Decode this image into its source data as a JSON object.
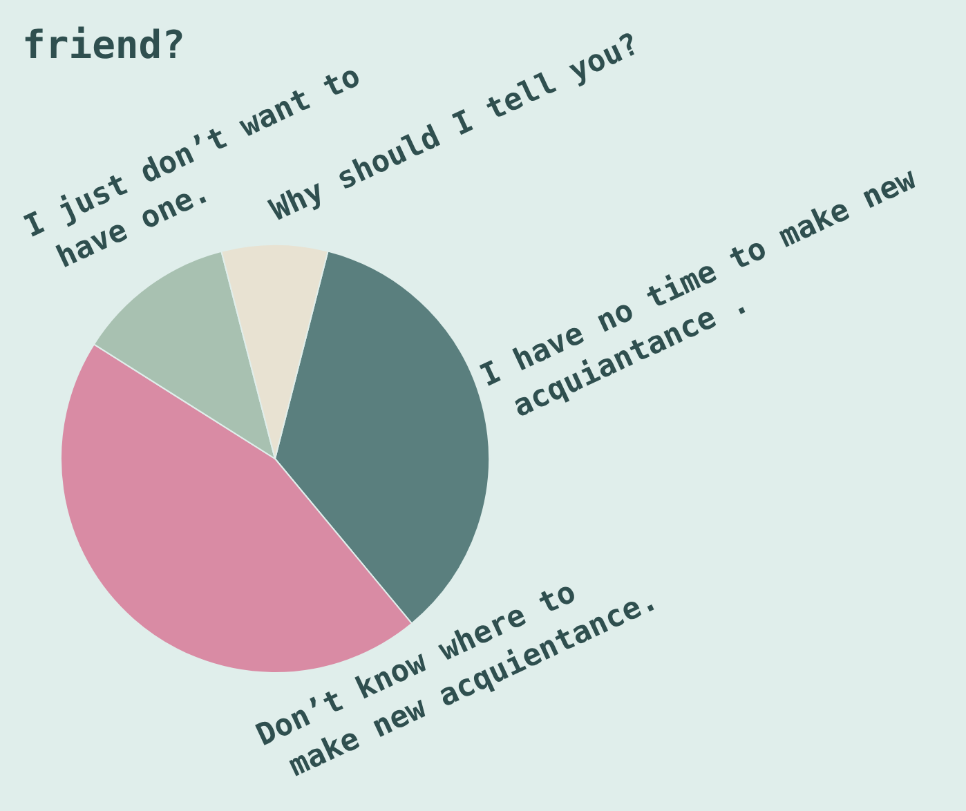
{
  "chart_data": {
    "type": "pie",
    "title": "friend?",
    "categories": [
      "I have no time to make new\nacquiantance .",
      "Don’t know where to\nmake new acquientance.",
      "I just don’t want to\nhave one.",
      "Why should I tell you?"
    ],
    "values": [
      35,
      45,
      12,
      8
    ],
    "colors": [
      "#5a7f7e",
      "#d98ba4",
      "#a8c1b1",
      "#e8e2d2"
    ]
  }
}
